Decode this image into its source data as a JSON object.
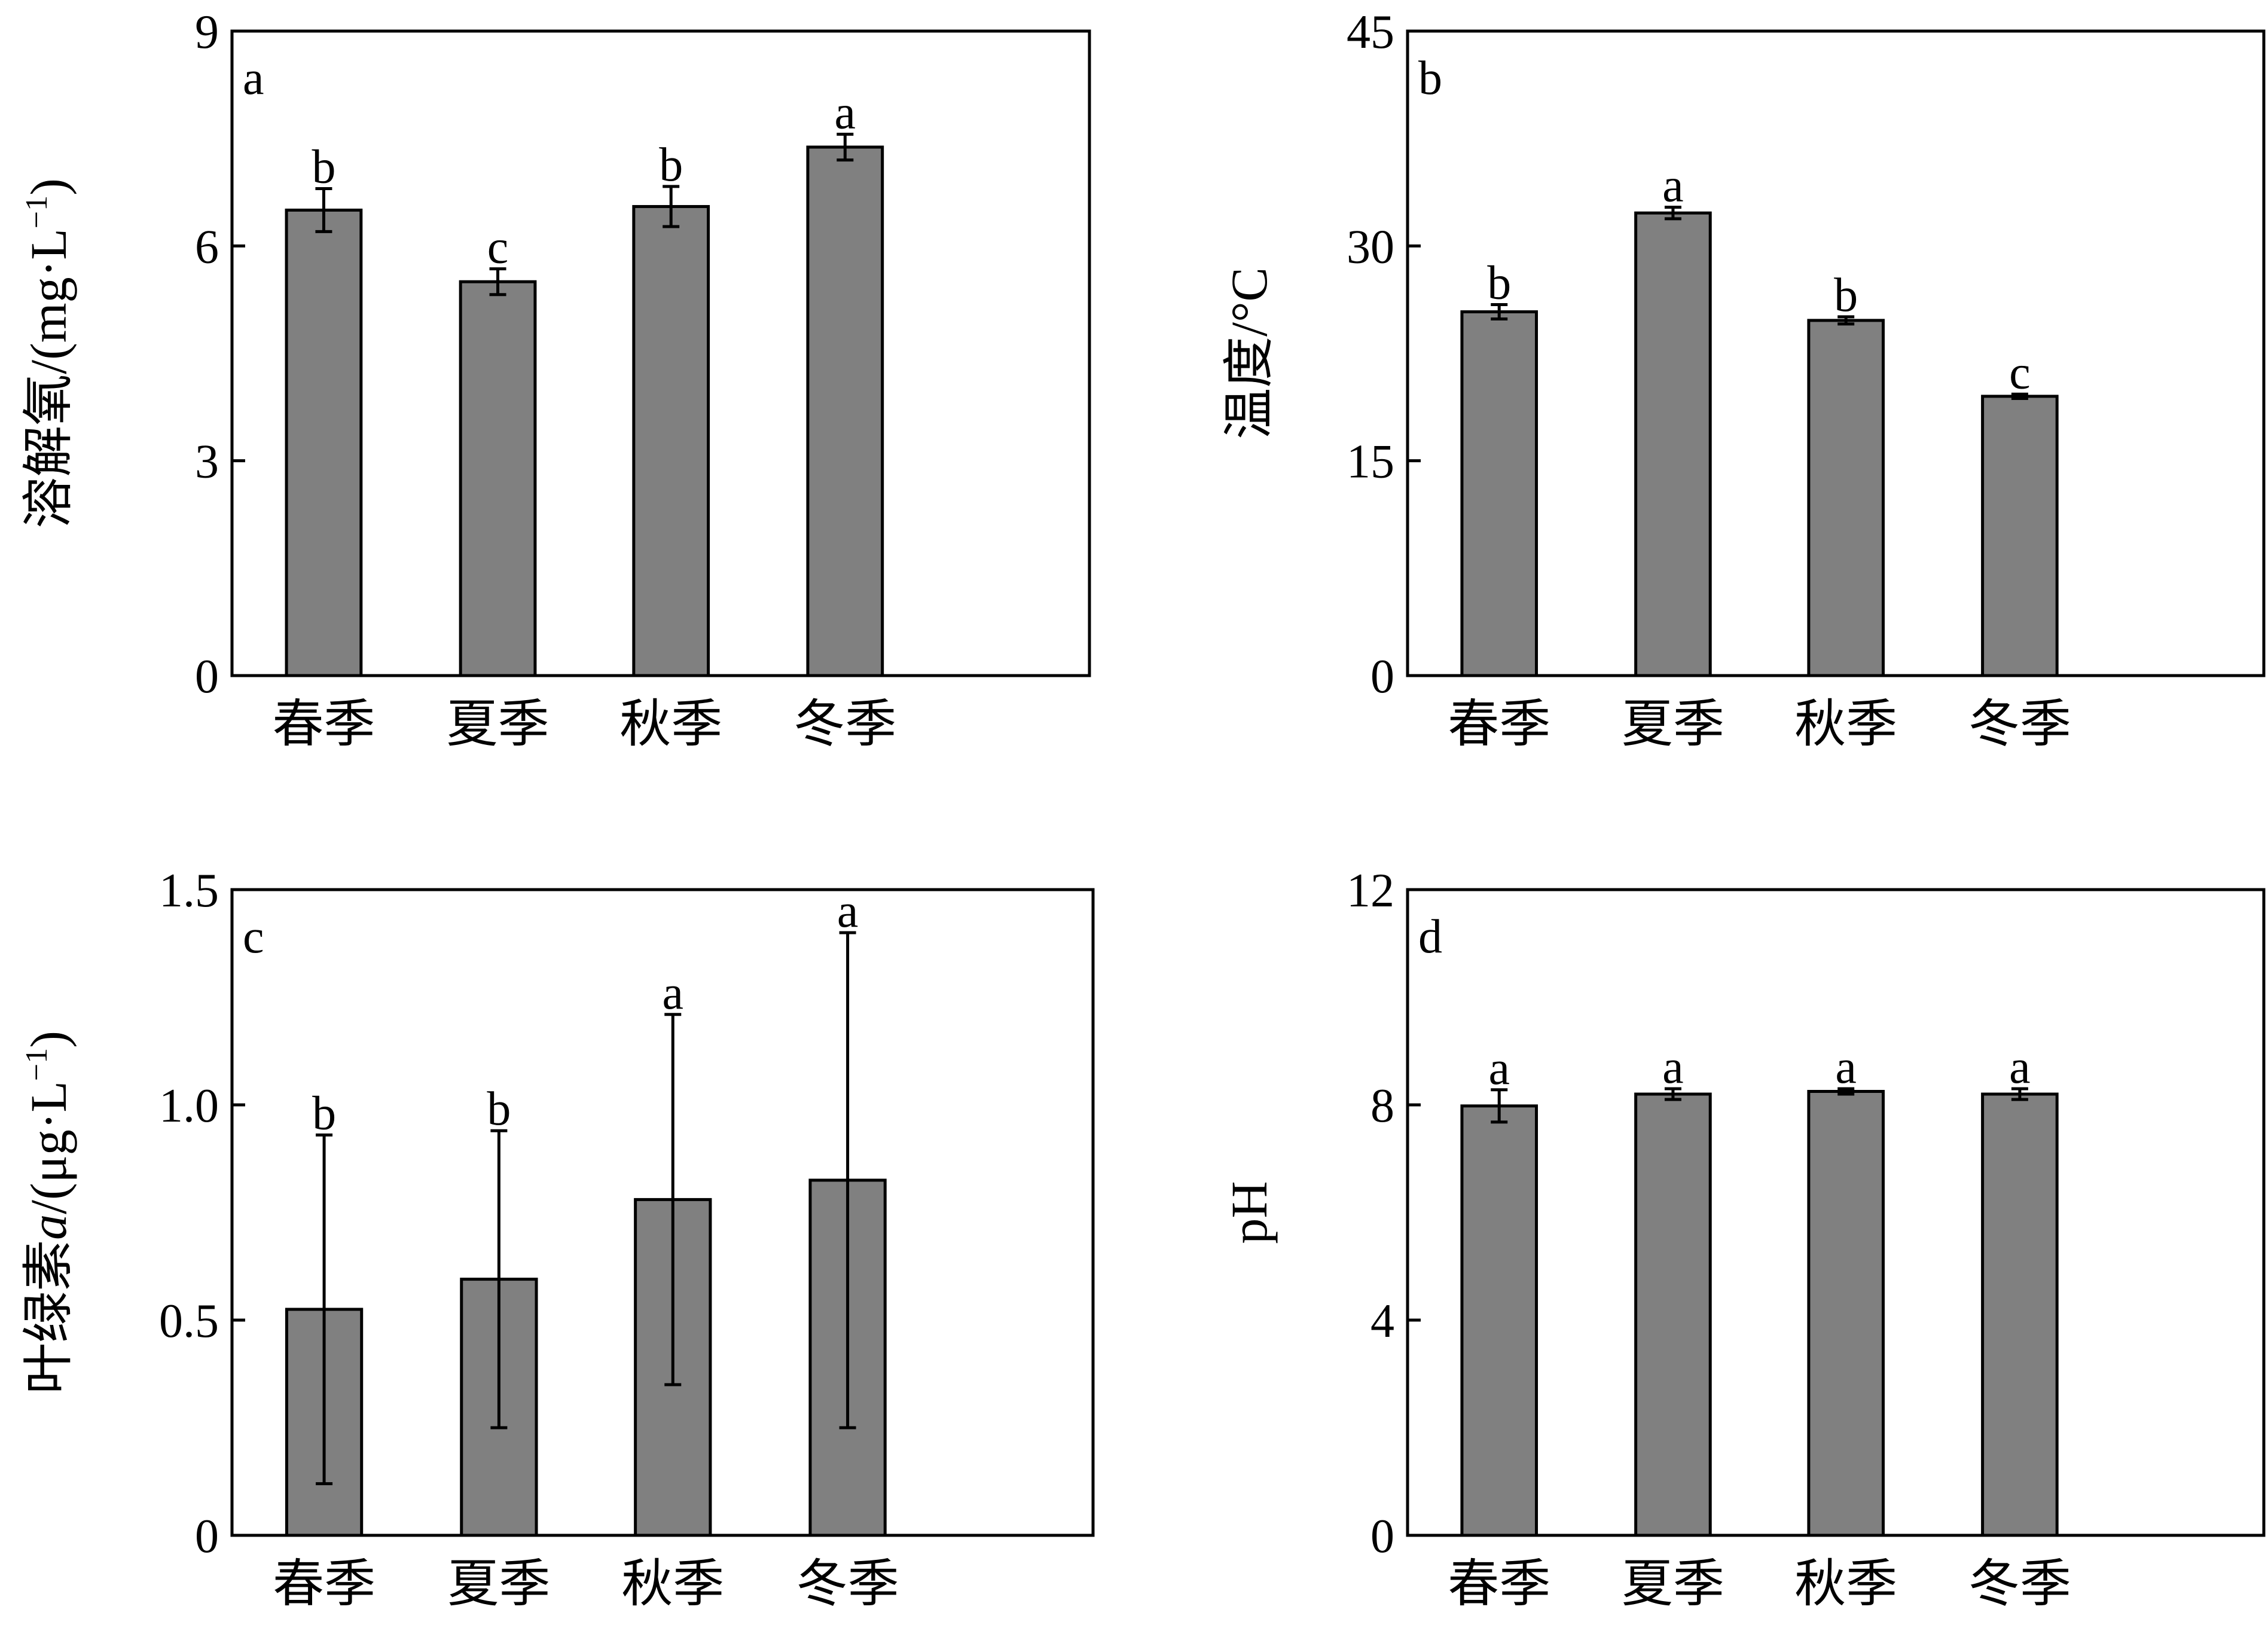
{
  "chart_data": [
    {
      "type": "bar",
      "panel": "a",
      "categories": [
        "春季",
        "夏季",
        "秋季",
        "冬季"
      ],
      "values": [
        6.5,
        5.5,
        6.55,
        7.38
      ],
      "errors": [
        0.3,
        0.18,
        0.28,
        0.18
      ],
      "significance": [
        "b",
        "c",
        "b",
        "a"
      ],
      "ylabel_main": "溶解氧/(mg·L",
      "ylabel_sup": "−1",
      "ylabel_tail": ")",
      "ylim": [
        0,
        9
      ],
      "yticks": [
        0,
        3,
        6,
        9
      ],
      "ytick_labels": [
        "0",
        "3",
        "6",
        "9"
      ],
      "bar_color": "#808080"
    },
    {
      "type": "bar",
      "panel": "b",
      "categories": [
        "春季",
        "夏季",
        "秋季",
        "冬季"
      ],
      "values": [
        25.4,
        32.3,
        24.8,
        19.5
      ],
      "errors": [
        0.5,
        0.4,
        0.25,
        0.15
      ],
      "significance": [
        "b",
        "a",
        "b",
        "c"
      ],
      "ylabel_main": "温度/°C",
      "ylabel_sup": "",
      "ylabel_tail": "",
      "ylim": [
        0,
        45
      ],
      "yticks": [
        0,
        15,
        30,
        45
      ],
      "ytick_labels": [
        "0",
        "15",
        "30",
        "45"
      ],
      "bar_color": "#808080"
    },
    {
      "type": "bar",
      "panel": "c",
      "categories": [
        "春季",
        "夏季",
        "秋季",
        "冬季"
      ],
      "values": [
        0.525,
        0.595,
        0.78,
        0.825
      ],
      "errors": [
        0.405,
        0.345,
        0.43,
        0.575
      ],
      "significance": [
        "b",
        "b",
        "a",
        "a"
      ],
      "ylabel_main": "叶绿素",
      "ylabel_italic": "a",
      "ylabel_after": "/(μg·L",
      "ylabel_sup": "−1",
      "ylabel_tail": ")",
      "ylim": [
        0,
        1.5
      ],
      "yticks": [
        0,
        0.5,
        1.0,
        1.5
      ],
      "ytick_labels": [
        "0",
        "0.5",
        "1.0",
        "1.5"
      ],
      "bar_color": "#808080"
    },
    {
      "type": "bar",
      "panel": "d",
      "categories": [
        "春季",
        "夏季",
        "秋季",
        "冬季"
      ],
      "values": [
        7.98,
        8.2,
        8.25,
        8.2
      ],
      "errors": [
        0.3,
        0.1,
        0.05,
        0.1
      ],
      "significance": [
        "a",
        "a",
        "a",
        "a"
      ],
      "ylabel_main": "pH",
      "ylabel_sup": "",
      "ylabel_tail": "",
      "ylim": [
        0,
        12
      ],
      "yticks": [
        0,
        4,
        8,
        12
      ],
      "ytick_labels": [
        "0",
        "4",
        "8",
        "12"
      ],
      "bar_color": "#808080"
    }
  ]
}
